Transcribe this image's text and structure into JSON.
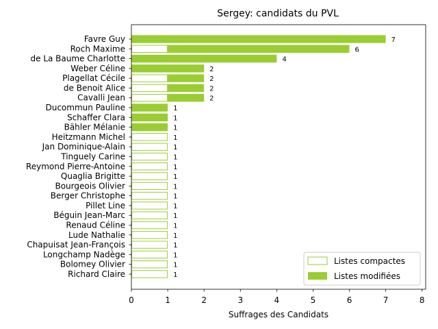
{
  "chart_data": {
    "type": "bar",
    "orientation": "horizontal",
    "stacked": true,
    "title": "Sergey: candidats du PVL",
    "xlabel": "Suffrages des Candidats",
    "ylabel": "",
    "xlim": [
      0,
      8.1
    ],
    "xticks": [
      "0",
      "1",
      "2",
      "3",
      "4",
      "5",
      "6",
      "7",
      "8"
    ],
    "color": "#9acd32",
    "legend_position": "lower-right",
    "categories": [
      "Favre Guy",
      "Roch Maxime",
      "de La Baume Charlotte",
      "Weber Céline",
      "Plagellat Cécile",
      "de Benoit Alice",
      "Cavalli Jean",
      "Ducommun Pauline",
      "Schaffer Clara",
      "Bähler Mélanie",
      "Heitzmann Michel",
      "Jan Dominique-Alain",
      "Tinguely Carine",
      "Reymond Pierre-Antoine",
      "Quaglia Brigitte",
      "Bourgeois Olivier",
      "Berger Christophe",
      "Pillet Line",
      "Béguin Jean-Marc",
      "Renaud Céline",
      "Lude Nathalie",
      "Chapuisat Jean-François",
      "Longchamp Nadège",
      "Bolomey Olivier",
      "Richard Claire"
    ],
    "series": [
      {
        "name": "Listes compactes",
        "style": "outline",
        "values": [
          0,
          1,
          0,
          0,
          1,
          1,
          1,
          0,
          0,
          0,
          1,
          1,
          1,
          1,
          1,
          1,
          1,
          1,
          1,
          1,
          1,
          1,
          1,
          1,
          1
        ]
      },
      {
        "name": "Listes modifiées",
        "style": "filled",
        "values": [
          7,
          5,
          4,
          2,
          1,
          1,
          1,
          1,
          1,
          1,
          0,
          0,
          0,
          0,
          0,
          0,
          0,
          0,
          0,
          0,
          0,
          0,
          0,
          0,
          0
        ]
      }
    ],
    "totals": [
      "7",
      "6",
      "4",
      "2",
      "2",
      "2",
      "2",
      "1",
      "1",
      "1",
      "1",
      "1",
      "1",
      "1",
      "1",
      "1",
      "1",
      "1",
      "1",
      "1",
      "1",
      "1",
      "1",
      "1",
      "1"
    ]
  }
}
